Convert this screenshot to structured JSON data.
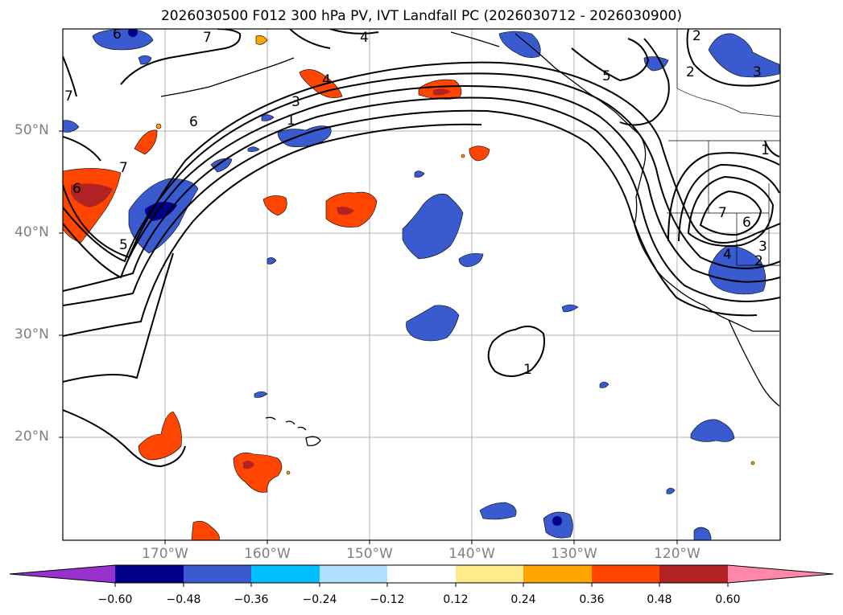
{
  "title": "2026030500 F012 300 hPa PV, IVT Landfall PC (2026030712 - 2026030900)",
  "lat_labels": [
    "50°N",
    "40°N",
    "30°N",
    "20°N"
  ],
  "lon_labels": [
    "170°W",
    "160°W",
    "150°W",
    "140°W",
    "130°W",
    "120°W"
  ],
  "colorbar": {
    "levels": [
      "−0.60",
      "−0.48",
      "−0.36",
      "−0.24",
      "−0.12",
      "0.12",
      "0.24",
      "0.36",
      "0.48",
      "0.60"
    ],
    "colors": [
      "#9932cc",
      "#00008b",
      "#3a5bd0",
      "#00bfff",
      "#b0e2ff",
      "#ffffff",
      "#ffeb8a",
      "#ffa500",
      "#ff4500",
      "#b22222",
      "#ff88aa"
    ]
  },
  "contour_labels": [
    "6",
    "7",
    "4",
    "2",
    "3",
    "5",
    "1",
    "7",
    "6",
    "3",
    "1",
    "6",
    "7",
    "4",
    "2",
    "7",
    "6",
    "4",
    "3",
    "2",
    "5",
    "1"
  ]
}
